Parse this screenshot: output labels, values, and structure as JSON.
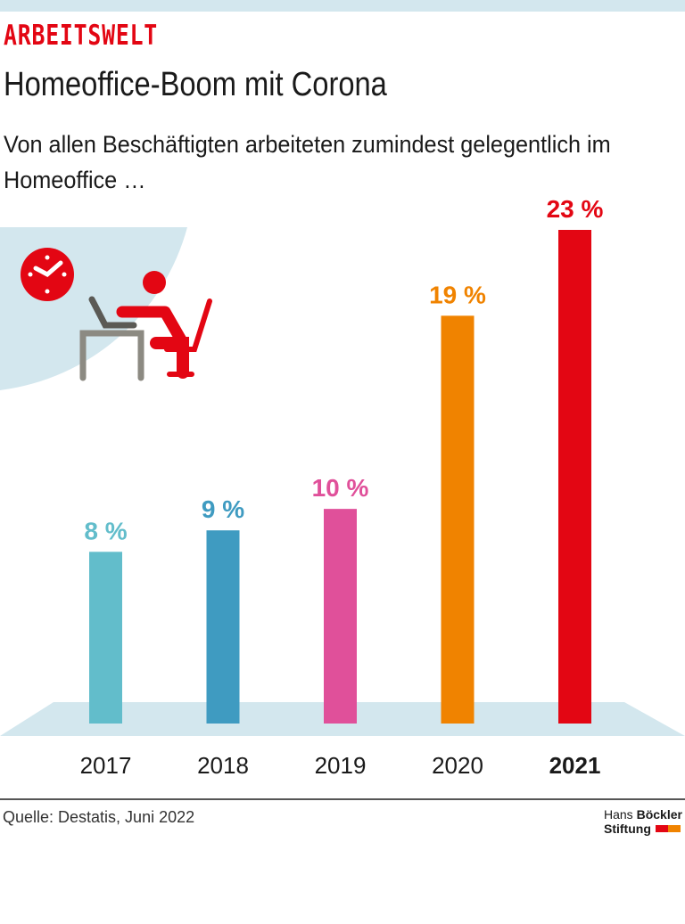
{
  "header": {
    "kicker": "ARBEITSWELT",
    "title": "Homeoffice-Boom mit Corona",
    "subtitle": "Von allen Beschäftigten arbeiteten zumindest gelegentlich im Homeoffice …"
  },
  "chart_data": {
    "type": "bar",
    "categories": [
      "2017",
      "2018",
      "2019",
      "2020",
      "2021"
    ],
    "values": [
      8,
      9,
      10,
      19,
      23
    ],
    "labels": [
      "8 %",
      "9 %",
      "10 %",
      "19 %",
      "23 %"
    ],
    "colors": [
      "#62bdcb",
      "#3f9bc1",
      "#e0509a",
      "#f08300",
      "#e30613"
    ],
    "unit": "%",
    "ylim": [
      0,
      23
    ],
    "grid": false
  },
  "illustration": {
    "icons": [
      "clock-icon",
      "person-at-laptop-icon"
    ],
    "accent": "#e30613",
    "desk_color": "#8c8a82",
    "laptop_color": "#5b5a55",
    "background": "#d3e7ee"
  },
  "footer": {
    "source": "Quelle: Destatis, Juni 2022",
    "logo_line1_a": "Hans ",
    "logo_line1_b": "Böckler",
    "logo_line2": "Stiftung"
  }
}
